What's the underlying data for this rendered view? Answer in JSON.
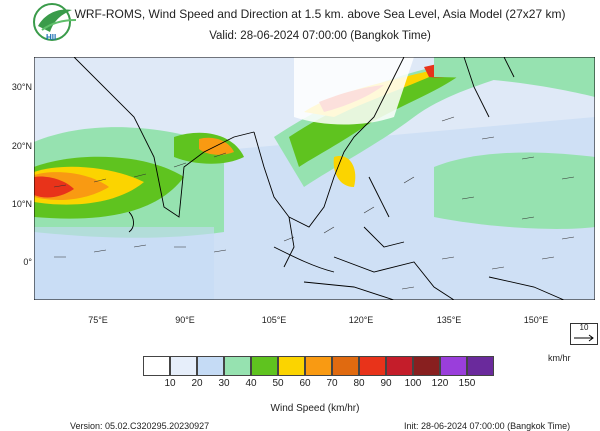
{
  "header": {
    "title": "WRF-ROMS, Wind Speed and Direction at 1.5 km. above Sea Level, Asia Model (27x27 km)",
    "valid": "Valid: 28-06-2024 07:00:00 (Bangkok Time)",
    "logo_text": "HII"
  },
  "map": {
    "lat_labels": [
      "30°N",
      "20°N",
      "10°N",
      "0°"
    ],
    "lon_labels": [
      "75°E",
      "90°E",
      "105°E",
      "120°E",
      "135°E",
      "150°E"
    ],
    "reference_vector_label": "10",
    "reference_vector_unit": "km/hr"
  },
  "legend": {
    "title": "Wind Speed (km/hr)",
    "ticks": [
      "10",
      "20",
      "30",
      "40",
      "50",
      "60",
      "70",
      "80",
      "90",
      "100",
      "120",
      "150"
    ],
    "colors": [
      "#ffffff",
      "#e6eefa",
      "#c5dbf5",
      "#96e2b0",
      "#5fc31f",
      "#fbd400",
      "#f99a12",
      "#e06a10",
      "#e8331a",
      "#c41d2a",
      "#881f1f",
      "#9a3edb",
      "#6a2a9c"
    ]
  },
  "footer": {
    "version": "Version: 05.02.C320295.20230927",
    "init": "Init: 28-06-2024 07:00:00 (Bangkok Time)"
  }
}
